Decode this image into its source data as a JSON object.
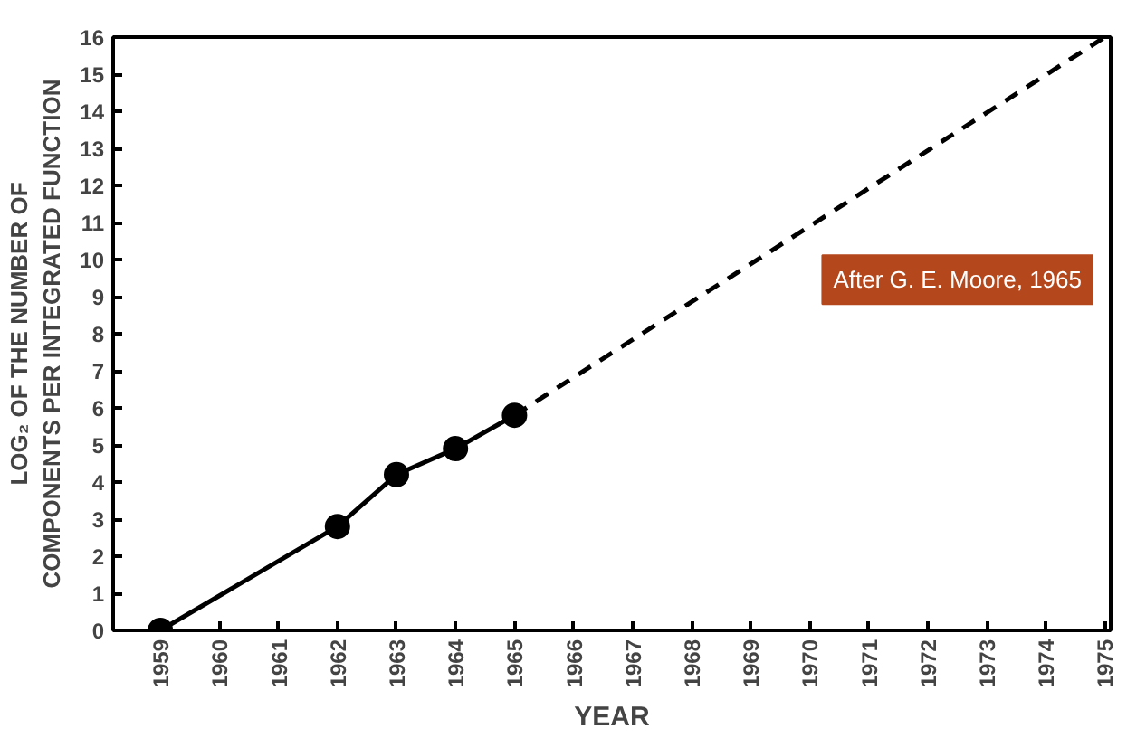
{
  "chart_data": {
    "type": "line",
    "xlabel": "YEAR",
    "ylabel": "LOG₂ OF THE NUMBER OF\nCOMPONENTS PER INTEGRATED FUNCTION",
    "annotations": [
      "After G. E. Moore, 1965"
    ],
    "xlim": [
      1958.2,
      1975.1
    ],
    "ylim": [
      0,
      16
    ],
    "xticks": [
      1959,
      1960,
      1961,
      1962,
      1963,
      1964,
      1965,
      1966,
      1967,
      1968,
      1969,
      1970,
      1971,
      1972,
      1973,
      1974,
      1975
    ],
    "yticks": [
      0,
      1,
      2,
      3,
      4,
      5,
      6,
      7,
      8,
      9,
      10,
      11,
      12,
      13,
      14,
      15,
      16
    ],
    "grid": false,
    "series": [
      {
        "color": "#000000",
        "x": [
          1959,
          1962,
          1963,
          1964,
          1965
        ],
        "values": [
          0,
          2.8,
          4.2,
          4.9,
          5.8
        ],
        "marker": "circle",
        "line_style": "solid"
      },
      {
        "color": "#000000",
        "x": [
          1965,
          1975
        ],
        "values": [
          5.8,
          16
        ],
        "marker": "none",
        "line_style": "dashed"
      }
    ]
  }
}
